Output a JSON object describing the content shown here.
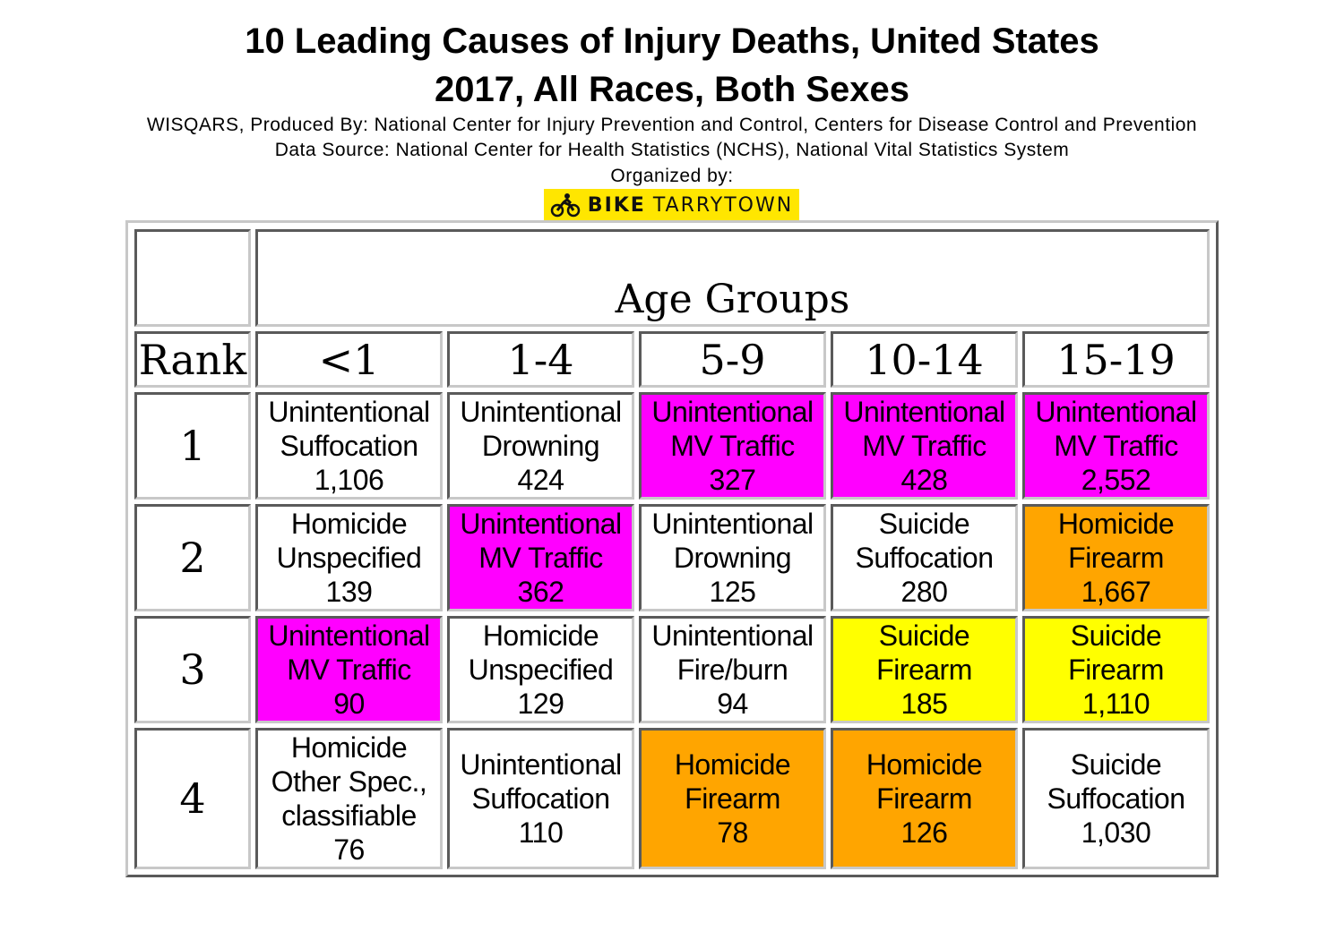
{
  "title_line1": "10 Leading Causes of Injury Deaths, United States",
  "title_line2": "2017, All Races, Both Sexes",
  "credit_line1": "WISQARS, Produced By: National Center for Injury Prevention and Control, Centers for Disease Control and Prevention",
  "credit_line2": "Data Source: National Center for Health Statistics (NCHS), National Vital Statistics System",
  "organized_by": "Organized by:",
  "logo": {
    "icon": "cyclist-icon",
    "bold_text": "BIKE",
    "text": "TARRYTOWN",
    "background": "#ffe600"
  },
  "table": {
    "group_header": "Age Groups",
    "rank_header": "Rank",
    "age_groups": [
      "<1",
      "1-4",
      "5-9",
      "10-14",
      "15-19"
    ],
    "colors": {
      "magenta": "#ff00ff",
      "orange": "#ffa500",
      "yellow": "#ffff00",
      "white": "#ffffff"
    },
    "rows": [
      {
        "rank": "1",
        "cells": [
          {
            "lines": [
              "Unintentional",
              "Suffocation",
              "1,106"
            ],
            "color": "white"
          },
          {
            "lines": [
              "Unintentional",
              "Drowning",
              "424"
            ],
            "color": "white"
          },
          {
            "lines": [
              "Unintentional",
              "MV Traffic",
              "327"
            ],
            "color": "magenta"
          },
          {
            "lines": [
              "Unintentional",
              "MV Traffic",
              "428"
            ],
            "color": "magenta"
          },
          {
            "lines": [
              "Unintentional",
              "MV Traffic",
              "2,552"
            ],
            "color": "magenta"
          }
        ]
      },
      {
        "rank": "2",
        "cells": [
          {
            "lines": [
              "Homicide",
              "Unspecified",
              "139"
            ],
            "color": "white"
          },
          {
            "lines": [
              "Unintentional",
              "MV Traffic",
              "362"
            ],
            "color": "magenta"
          },
          {
            "lines": [
              "Unintentional",
              "Drowning",
              "125"
            ],
            "color": "white"
          },
          {
            "lines": [
              "Suicide",
              "Suffocation",
              "280"
            ],
            "color": "white"
          },
          {
            "lines": [
              "Homicide",
              "Firearm",
              "1,667"
            ],
            "color": "orange"
          }
        ]
      },
      {
        "rank": "3",
        "cells": [
          {
            "lines": [
              "Unintentional",
              "MV Traffic",
              "90"
            ],
            "color": "magenta"
          },
          {
            "lines": [
              "Homicide",
              "Unspecified",
              "129"
            ],
            "color": "white"
          },
          {
            "lines": [
              "Unintentional",
              "Fire/burn",
              "94"
            ],
            "color": "white"
          },
          {
            "lines": [
              "Suicide",
              "Firearm",
              "185"
            ],
            "color": "yellow"
          },
          {
            "lines": [
              "Suicide",
              "Firearm",
              "1,110"
            ],
            "color": "yellow"
          }
        ]
      },
      {
        "rank": "4",
        "cells": [
          {
            "lines": [
              "Homicide",
              "Other Spec.,",
              "classifiable",
              "76"
            ],
            "color": "white"
          },
          {
            "lines": [
              "Unintentional",
              "Suffocation",
              "110"
            ],
            "color": "white"
          },
          {
            "lines": [
              "Homicide",
              "Firearm",
              "78"
            ],
            "color": "orange"
          },
          {
            "lines": [
              "Homicide",
              "Firearm",
              "126"
            ],
            "color": "orange"
          },
          {
            "lines": [
              "Suicide",
              "Suffocation",
              "1,030"
            ],
            "color": "white"
          }
        ]
      }
    ]
  }
}
